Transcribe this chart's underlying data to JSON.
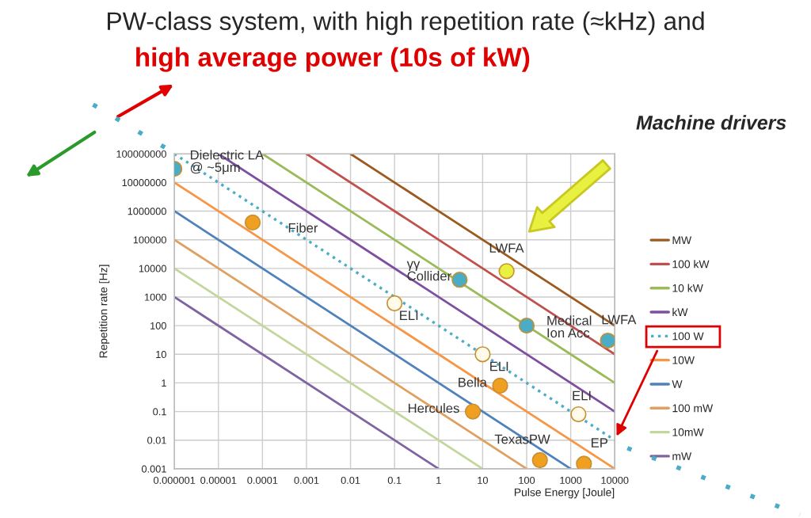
{
  "chart_data": {
    "type": "line",
    "title": "PW-class system, with high repetition rate (≈kHz) and",
    "subtitle": "high average power (10s of kW)",
    "xlabel": "Pulse Energy [Joule]",
    "ylabel": "Repetition rate [Hz]",
    "log": "xy",
    "xlim": [
      1e-06,
      10000
    ],
    "ylim": [
      0.001,
      100000000
    ],
    "xticks": [
      {
        "value": 1e-06,
        "label": "0.000001"
      },
      {
        "value": 1e-05,
        "label": "0.00001"
      },
      {
        "value": 0.0001,
        "label": "0.0001"
      },
      {
        "value": 0.001,
        "label": "0.001"
      },
      {
        "value": 0.01,
        "label": "0.01"
      },
      {
        "value": 0.1,
        "label": "0.1"
      },
      {
        "value": 1,
        "label": "1"
      },
      {
        "value": 10,
        "label": "10"
      },
      {
        "value": 100,
        "label": "100"
      },
      {
        "value": 1000,
        "label": "1000"
      },
      {
        "value": 10000,
        "label": "10000"
      }
    ],
    "yticks": [
      0.001,
      0.01,
      0.1,
      1,
      10,
      100,
      1000,
      10000,
      100000,
      1000000,
      10000000,
      100000000
    ],
    "grid": true,
    "legend": "right",
    "series": [
      {
        "name": "MW",
        "color": "#9c5a1e",
        "x": [
          0.01,
          10000
        ],
        "values": [
          100000000,
          100
        ]
      },
      {
        "name": "100 kW",
        "color": "#c0504d",
        "x": [
          0.001,
          10000
        ],
        "values": [
          100000000,
          10
        ]
      },
      {
        "name": "10 kW",
        "color": "#9bbb59",
        "x": [
          0.0001,
          10000
        ],
        "values": [
          100000000,
          1
        ]
      },
      {
        "name": "kW",
        "color": "#7f4f9f",
        "x": [
          1e-05,
          10000
        ],
        "values": [
          100000000,
          0.1
        ]
      },
      {
        "name": "100 W",
        "color": "#4bacc6",
        "line_style": "dotted",
        "x": [
          1e-06,
          10000
        ],
        "values": [
          100000000,
          0.01
        ]
      },
      {
        "name": "10W",
        "color": "#f79646",
        "x": [
          1e-06,
          10000
        ],
        "values": [
          10000000,
          0.001
        ]
      },
      {
        "name": "W",
        "color": "#4f81bd",
        "x": [
          1e-06,
          1000
        ],
        "values": [
          1000000,
          0.001
        ]
      },
      {
        "name": "100 mW",
        "color": "#e0a060",
        "x": [
          1e-06,
          100
        ],
        "values": [
          100000,
          0.001
        ]
      },
      {
        "name": "10mW",
        "color": "#c3d69b",
        "x": [
          1e-06,
          10
        ],
        "values": [
          10000,
          0.001
        ]
      },
      {
        "name": "mW",
        "color": "#8064a2",
        "x": [
          1e-06,
          1
        ],
        "values": [
          1000,
          0.001
        ]
      },
      {
        "type": "scatter",
        "marker": "circle",
        "x": [
          1e-06,
          6e-05,
          3,
          35,
          100,
          7000,
          0.1,
          10,
          25,
          6,
          1500,
          200,
          2000
        ],
        "values": [
          30000000,
          400000,
          4000,
          8000,
          100,
          30,
          600,
          10,
          0.8,
          0.1,
          0.08,
          0.002,
          0.0015
        ],
        "colors": [
          "#4bacc6",
          "#f0a020",
          "#4bacc6",
          "#e8f040",
          "#4bacc6",
          "#4bacc6",
          "#fffbe8",
          "#fffbe8",
          "#f0a020",
          "#f0a020",
          "#fffbe8",
          "#f0a020",
          "#f0a020"
        ]
      }
    ],
    "annotations": [
      {
        "text": "Dielectric LA\n@ ~5μm",
        "x": 1e-06,
        "y": 30000000
      },
      {
        "text": "Fiber",
        "x": 6e-05,
        "y": 400000
      },
      {
        "text": "γγ\nCollider",
        "x": 3,
        "y": 4000
      },
      {
        "text": "LWFA",
        "x": 35,
        "y": 8000
      },
      {
        "text": "Medical\nIon Acc",
        "x": 100,
        "y": 100
      },
      {
        "text": "LWFA",
        "x": 7000,
        "y": 30
      },
      {
        "text": "ELI",
        "x": 0.1,
        "y": 600
      },
      {
        "text": "ELI",
        "x": 10,
        "y": 10
      },
      {
        "text": "Bella",
        "x": 25,
        "y": 0.8
      },
      {
        "text": "Hercules",
        "x": 6,
        "y": 0.1
      },
      {
        "text": "ELI",
        "x": 1500,
        "y": 0.08
      },
      {
        "text": "TexasPW",
        "x": 200,
        "y": 0.002
      },
      {
        "text": "EP",
        "x": 2000,
        "y": 0.0015
      },
      "Machine drivers"
    ]
  }
}
